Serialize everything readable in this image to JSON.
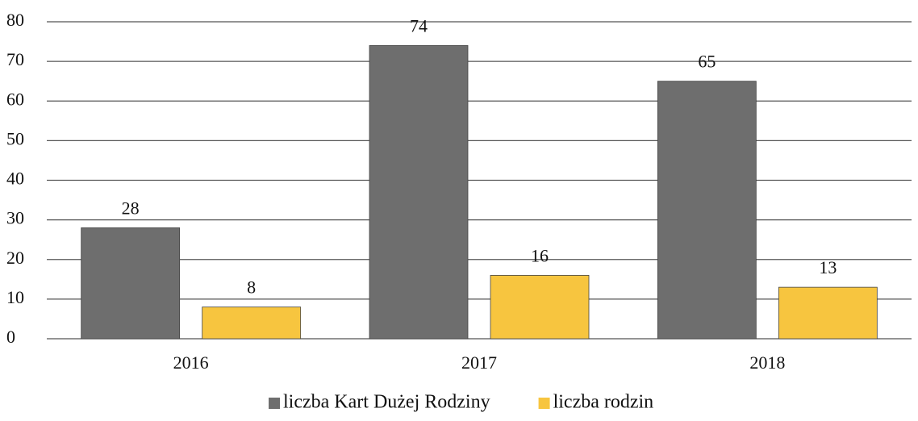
{
  "chart_data": {
    "type": "bar",
    "categories": [
      "2016",
      "2017",
      "2018"
    ],
    "series": [
      {
        "name": "liczba Kart Dużej Rodziny",
        "color": "#6e6e6e",
        "values": [
          28,
          74,
          65
        ]
      },
      {
        "name": "liczba rodzin",
        "color": "#f7c53f",
        "values": [
          8,
          16,
          13
        ]
      }
    ],
    "ylim": [
      0,
      80
    ],
    "yticks": [
      0,
      10,
      20,
      30,
      40,
      50,
      60,
      70,
      80
    ],
    "grid": true,
    "legend": "bottom"
  }
}
